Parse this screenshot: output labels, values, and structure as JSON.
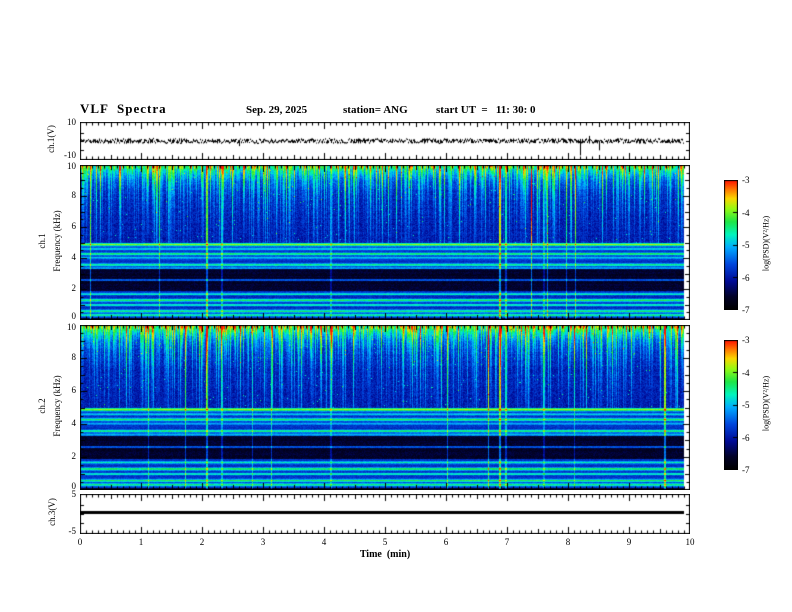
{
  "header": {
    "title": "VLF  Spectra",
    "date": "Sep. 29, 2025",
    "station": "station= ANG",
    "start_ut": "start UT  =   11: 30: 0"
  },
  "x_axis": {
    "label": "Time  (min)",
    "min": 0,
    "max": 10,
    "tick_labels": [
      "0",
      "1",
      "2",
      "3",
      "4",
      "5",
      "6",
      "7",
      "8",
      "9",
      "10"
    ]
  },
  "panels": {
    "ch1_wave": {
      "ylabel": "ch.1(V)",
      "ymin": -10,
      "ymax": 10,
      "ytick_labels": [
        "10",
        "-10"
      ]
    },
    "ch1_spec": {
      "channel_label": "ch.1",
      "ylabel": "Frequency  (kHz)",
      "ymin": 0,
      "ymax": 10,
      "ytick_labels": [
        "0",
        "2",
        "4",
        "6",
        "8",
        "10"
      ]
    },
    "ch2_spec": {
      "channel_label": "ch.2",
      "ylabel": "Frequency  (kHz)",
      "ymin": 0,
      "ymax": 10,
      "ytick_labels": [
        "0",
        "2",
        "4",
        "6",
        "8",
        "10"
      ]
    },
    "ch3_wave": {
      "ylabel": "ch.3(V)",
      "ymin": -5,
      "ymax": 5,
      "ytick_labels": [
        "5",
        "-5"
      ]
    }
  },
  "colorbars": {
    "label": "log(PSD)(V²/Hz)",
    "tick_labels": [
      "-3",
      "-4",
      "-5",
      "-6",
      "-7"
    ],
    "top_color": "#ff1400",
    "bottom_color": "#000000"
  },
  "chart_data": [
    {
      "type": "line",
      "panel": "ch.1(V) waveform",
      "x_label": "Time (min)",
      "x_range_min": [
        0,
        9.9
      ],
      "y_range_v": [
        -10,
        10
      ],
      "series": [
        {
          "name": "ch.1 broadband voltage",
          "description": "continuous noise band of roughly ±1.5 V about 0 V with frequent small impulses",
          "notable_spikes": [
            {
              "t_min": 2.6,
              "value_v": -3
            },
            {
              "t_min": 8.2,
              "value_v": -8.5
            },
            {
              "t_min": 8.35,
              "value_v": 3
            },
            {
              "t_min": 8.5,
              "value_v": -5.5
            }
          ]
        }
      ]
    },
    {
      "type": "heatmap",
      "panel": "ch.1 VLF spectrogram",
      "x_range_min": [
        0,
        9.9
      ],
      "y_range_khz": [
        0,
        10
      ],
      "z_log_psd_v2_per_hz": [
        -7,
        -3
      ],
      "background_level_log_psd": -6.2,
      "features": [
        "dense vertical sferic streaks descending from 10 kHz to 5-7 kHz (cyan/green with yellow tops)",
        "nearly continuous bright band 8.5-10 kHz",
        "dark absorption bands near 1.9-2.55 kHz and 2.7-3.3 kHz",
        "bright horizontal transmitter lines near 0.35, 0.6, 1.0, 1.3, 1.7, 3.6, 4.3, 4.9 kHz"
      ],
      "events": [
        {
          "t_min": 2.08,
          "strength": 0.45
        },
        {
          "t_min": 2.32,
          "strength": 0.25
        },
        {
          "t_min": 4.1,
          "strength": 0.2
        },
        {
          "t_min": 6.88,
          "strength": 0.55
        },
        {
          "t_min": 6.97,
          "strength": 0.3
        },
        {
          "t_min": 7.6,
          "strength": 0.2
        }
      ]
    },
    {
      "type": "heatmap",
      "panel": "ch.2 VLF spectrogram",
      "x_range_min": [
        0,
        9.9
      ],
      "y_range_khz": [
        0,
        10
      ],
      "z_log_psd_v2_per_hz": [
        -7,
        -3
      ],
      "background_level_log_psd": -6.2,
      "features": [
        "same sferic streak pattern as ch.1, slightly brighter 8-10 kHz band",
        "dark absorption bands near 1.9-2.55 kHz and 2.7-3.3 kHz",
        "bright horizontal transmitter lines near 0.35, 0.6, 1.0, 1.3, 1.7, 3.6, 4.3, 4.9 kHz"
      ],
      "events": [
        {
          "t_min": 2.08,
          "strength": 0.4
        },
        {
          "t_min": 2.32,
          "strength": 0.25
        },
        {
          "t_min": 4.1,
          "strength": 0.2
        },
        {
          "t_min": 6.88,
          "strength": 0.5
        },
        {
          "t_min": 6.97,
          "strength": 0.3
        },
        {
          "t_min": 7.6,
          "strength": 0.2
        },
        {
          "t_min": 9.58,
          "strength": 0.5
        }
      ]
    },
    {
      "type": "line",
      "panel": "ch.3(V) waveform",
      "x_range_min": [
        0,
        9.9
      ],
      "y_range_v": [
        -5,
        5
      ],
      "series": [
        {
          "name": "ch.3 voltage",
          "description": "constant flat line for entire record",
          "value_v": 0.5
        }
      ]
    }
  ]
}
